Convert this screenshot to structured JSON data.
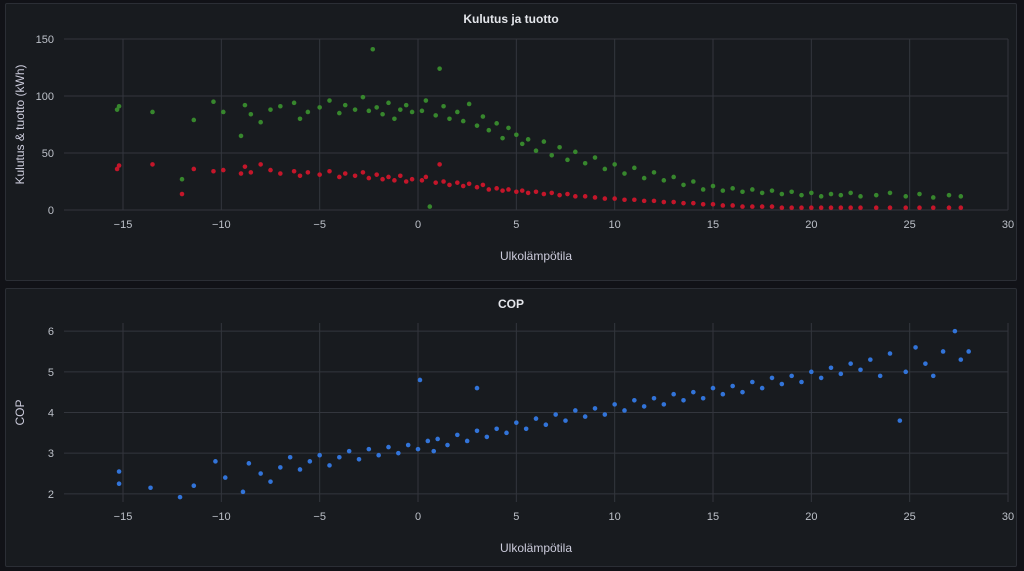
{
  "chart_data": [
    {
      "type": "scatter",
      "title": "Kulutus ja tuotto",
      "xlabel": "Ulkolämpötila",
      "ylabel": "Kulutus & tuotto (kWh)",
      "xlim": [
        -18,
        30
      ],
      "ylim": [
        0,
        150
      ],
      "xticks": [
        -15,
        -10,
        -5,
        0,
        5,
        10,
        15,
        20,
        25,
        30
      ],
      "yticks": [
        0,
        50,
        100,
        150
      ],
      "grid": true,
      "legend": "none",
      "series": [
        {
          "color": "#37872d",
          "points": [
            [
              -15.3,
              88
            ],
            [
              -15.2,
              91
            ],
            [
              -13.5,
              86
            ],
            [
              -12.0,
              27
            ],
            [
              -11.4,
              79
            ],
            [
              -10.4,
              95
            ],
            [
              -9.9,
              86
            ],
            [
              -9.0,
              65
            ],
            [
              -8.8,
              92
            ],
            [
              -8.5,
              84
            ],
            [
              -8.0,
              77
            ],
            [
              -7.5,
              88
            ],
            [
              -7.0,
              91
            ],
            [
              -6.3,
              94
            ],
            [
              -6.0,
              80
            ],
            [
              -5.6,
              86
            ],
            [
              -5.0,
              90
            ],
            [
              -4.5,
              96
            ],
            [
              -4.0,
              85
            ],
            [
              -3.7,
              92
            ],
            [
              -3.2,
              88
            ],
            [
              -2.8,
              99
            ],
            [
              -2.5,
              87
            ],
            [
              -2.3,
              141
            ],
            [
              -2.1,
              90
            ],
            [
              -1.8,
              84
            ],
            [
              -1.5,
              94
            ],
            [
              -1.2,
              80
            ],
            [
              -0.9,
              88
            ],
            [
              -0.6,
              92
            ],
            [
              -0.3,
              86
            ],
            [
              0.2,
              87
            ],
            [
              0.4,
              96
            ],
            [
              0.6,
              3
            ],
            [
              0.9,
              83
            ],
            [
              1.1,
              124
            ],
            [
              1.3,
              91
            ],
            [
              1.6,
              80
            ],
            [
              2.0,
              86
            ],
            [
              2.3,
              78
            ],
            [
              2.6,
              93
            ],
            [
              3.0,
              74
            ],
            [
              3.3,
              82
            ],
            [
              3.6,
              70
            ],
            [
              4.0,
              76
            ],
            [
              4.3,
              63
            ],
            [
              4.6,
              72
            ],
            [
              5.0,
              66
            ],
            [
              5.3,
              58
            ],
            [
              5.6,
              62
            ],
            [
              6.0,
              52
            ],
            [
              6.4,
              60
            ],
            [
              6.8,
              48
            ],
            [
              7.2,
              55
            ],
            [
              7.6,
              44
            ],
            [
              8.0,
              51
            ],
            [
              8.5,
              41
            ],
            [
              9.0,
              46
            ],
            [
              9.5,
              36
            ],
            [
              10.0,
              40
            ],
            [
              10.5,
              32
            ],
            [
              11.0,
              37
            ],
            [
              11.5,
              28
            ],
            [
              12.0,
              33
            ],
            [
              12.5,
              26
            ],
            [
              13.0,
              29
            ],
            [
              13.5,
              22
            ],
            [
              14.0,
              25
            ],
            [
              14.5,
              18
            ],
            [
              15.0,
              21
            ],
            [
              15.5,
              17
            ],
            [
              16.0,
              19
            ],
            [
              16.5,
              16
            ],
            [
              17.0,
              18
            ],
            [
              17.5,
              15
            ],
            [
              18.0,
              17
            ],
            [
              18.5,
              14
            ],
            [
              19.0,
              16
            ],
            [
              19.5,
              13
            ],
            [
              20.0,
              15
            ],
            [
              20.5,
              12
            ],
            [
              21.0,
              14
            ],
            [
              21.5,
              13
            ],
            [
              22.0,
              15
            ],
            [
              22.5,
              12
            ],
            [
              23.3,
              13
            ],
            [
              24.0,
              15
            ],
            [
              24.8,
              12
            ],
            [
              25.5,
              14
            ],
            [
              26.2,
              11
            ],
            [
              27.0,
              13
            ],
            [
              27.6,
              12
            ]
          ]
        },
        {
          "color": "#c4162a",
          "points": [
            [
              -15.3,
              36
            ],
            [
              -15.2,
              39
            ],
            [
              -13.5,
              40
            ],
            [
              -12.0,
              14
            ],
            [
              -11.4,
              36
            ],
            [
              -10.4,
              34
            ],
            [
              -9.9,
              35
            ],
            [
              -9.0,
              32
            ],
            [
              -8.8,
              38
            ],
            [
              -8.5,
              33
            ],
            [
              -8.0,
              40
            ],
            [
              -7.5,
              35
            ],
            [
              -7.0,
              32
            ],
            [
              -6.3,
              34
            ],
            [
              -6.0,
              30
            ],
            [
              -5.6,
              33
            ],
            [
              -5.0,
              31
            ],
            [
              -4.5,
              34
            ],
            [
              -4.0,
              29
            ],
            [
              -3.7,
              32
            ],
            [
              -3.2,
              30
            ],
            [
              -2.8,
              33
            ],
            [
              -2.5,
              28
            ],
            [
              -2.1,
              31
            ],
            [
              -1.8,
              27
            ],
            [
              -1.5,
              29
            ],
            [
              -1.2,
              26
            ],
            [
              -0.9,
              30
            ],
            [
              -0.6,
              25
            ],
            [
              -0.3,
              27
            ],
            [
              0.2,
              26
            ],
            [
              0.4,
              29
            ],
            [
              0.9,
              24
            ],
            [
              1.1,
              40
            ],
            [
              1.3,
              25
            ],
            [
              1.6,
              22
            ],
            [
              2.0,
              24
            ],
            [
              2.3,
              21
            ],
            [
              2.6,
              23
            ],
            [
              3.0,
              20
            ],
            [
              3.3,
              22
            ],
            [
              3.6,
              18
            ],
            [
              4.0,
              19
            ],
            [
              4.3,
              17
            ],
            [
              4.6,
              18
            ],
            [
              5.0,
              16
            ],
            [
              5.3,
              17
            ],
            [
              5.6,
              15
            ],
            [
              6.0,
              16
            ],
            [
              6.4,
              14
            ],
            [
              6.8,
              15
            ],
            [
              7.2,
              13
            ],
            [
              7.6,
              14
            ],
            [
              8.0,
              12
            ],
            [
              8.5,
              12
            ],
            [
              9.0,
              11
            ],
            [
              9.5,
              10
            ],
            [
              10.0,
              10
            ],
            [
              10.5,
              9
            ],
            [
              11.0,
              9
            ],
            [
              11.5,
              8
            ],
            [
              12.0,
              8
            ],
            [
              12.5,
              7
            ],
            [
              13.0,
              7
            ],
            [
              13.5,
              6
            ],
            [
              14.0,
              6
            ],
            [
              14.5,
              5
            ],
            [
              15.0,
              5
            ],
            [
              15.5,
              4
            ],
            [
              16.0,
              4
            ],
            [
              16.5,
              3
            ],
            [
              17.0,
              3
            ],
            [
              17.5,
              3
            ],
            [
              18.0,
              3
            ],
            [
              18.5,
              2
            ],
            [
              19.0,
              2
            ],
            [
              19.5,
              2
            ],
            [
              20.0,
              2
            ],
            [
              20.5,
              2
            ],
            [
              21.0,
              2
            ],
            [
              21.5,
              2
            ],
            [
              22.0,
              2
            ],
            [
              22.5,
              2
            ],
            [
              23.3,
              2
            ],
            [
              24.0,
              2
            ],
            [
              24.8,
              2
            ],
            [
              25.5,
              2
            ],
            [
              26.2,
              2
            ],
            [
              27.0,
              2
            ],
            [
              27.6,
              2
            ]
          ]
        }
      ]
    },
    {
      "type": "scatter",
      "title": "COP",
      "xlabel": "Ulkolämpötila",
      "ylabel": "COP",
      "xlim": [
        -18,
        30
      ],
      "ylim": [
        1.8,
        6.2
      ],
      "xticks": [
        -15,
        -10,
        -5,
        0,
        5,
        10,
        15,
        20,
        25,
        30
      ],
      "yticks": [
        2,
        3,
        4,
        5,
        6
      ],
      "grid": true,
      "legend": "none",
      "series": [
        {
          "color": "#3274d9",
          "points": [
            [
              -15.2,
              2.55
            ],
            [
              -15.2,
              2.25
            ],
            [
              -13.6,
              2.15
            ],
            [
              -12.1,
              1.92
            ],
            [
              -11.4,
              2.2
            ],
            [
              -10.3,
              2.8
            ],
            [
              -9.8,
              2.4
            ],
            [
              -8.9,
              2.05
            ],
            [
              -8.6,
              2.75
            ],
            [
              -8.0,
              2.5
            ],
            [
              -7.5,
              2.3
            ],
            [
              -7.0,
              2.65
            ],
            [
              -6.5,
              2.9
            ],
            [
              -6.0,
              2.6
            ],
            [
              -5.5,
              2.8
            ],
            [
              -5.0,
              2.95
            ],
            [
              -4.5,
              2.7
            ],
            [
              -4.0,
              2.9
            ],
            [
              -3.5,
              3.05
            ],
            [
              -3.0,
              2.85
            ],
            [
              -2.5,
              3.1
            ],
            [
              -2.0,
              2.95
            ],
            [
              -1.5,
              3.15
            ],
            [
              -1.0,
              3.0
            ],
            [
              -0.5,
              3.2
            ],
            [
              0.0,
              3.1
            ],
            [
              0.1,
              4.8
            ],
            [
              0.5,
              3.3
            ],
            [
              0.8,
              3.05
            ],
            [
              1.0,
              3.35
            ],
            [
              1.5,
              3.2
            ],
            [
              2.0,
              3.45
            ],
            [
              2.5,
              3.3
            ],
            [
              3.0,
              3.55
            ],
            [
              3.0,
              4.6
            ],
            [
              3.5,
              3.4
            ],
            [
              4.0,
              3.6
            ],
            [
              4.5,
              3.5
            ],
            [
              5.0,
              3.75
            ],
            [
              5.5,
              3.6
            ],
            [
              6.0,
              3.85
            ],
            [
              6.5,
              3.7
            ],
            [
              7.0,
              3.95
            ],
            [
              7.5,
              3.8
            ],
            [
              8.0,
              4.05
            ],
            [
              8.5,
              3.9
            ],
            [
              9.0,
              4.1
            ],
            [
              9.5,
              3.95
            ],
            [
              10.0,
              4.2
            ],
            [
              10.5,
              4.05
            ],
            [
              11.0,
              4.3
            ],
            [
              11.5,
              4.15
            ],
            [
              12.0,
              4.35
            ],
            [
              12.5,
              4.2
            ],
            [
              13.0,
              4.45
            ],
            [
              13.5,
              4.3
            ],
            [
              14.0,
              4.5
            ],
            [
              14.5,
              4.35
            ],
            [
              15.0,
              4.6
            ],
            [
              15.5,
              4.45
            ],
            [
              16.0,
              4.65
            ],
            [
              16.5,
              4.5
            ],
            [
              17.0,
              4.75
            ],
            [
              17.5,
              4.6
            ],
            [
              18.0,
              4.85
            ],
            [
              18.5,
              4.7
            ],
            [
              19.0,
              4.9
            ],
            [
              19.5,
              4.75
            ],
            [
              20.0,
              5.0
            ],
            [
              20.5,
              4.85
            ],
            [
              21.0,
              5.1
            ],
            [
              21.5,
              4.95
            ],
            [
              22.0,
              5.2
            ],
            [
              22.5,
              5.05
            ],
            [
              23.0,
              5.3
            ],
            [
              23.5,
              4.9
            ],
            [
              24.0,
              5.45
            ],
            [
              24.5,
              3.8
            ],
            [
              24.8,
              5.0
            ],
            [
              25.3,
              5.6
            ],
            [
              25.8,
              5.2
            ],
            [
              26.2,
              4.9
            ],
            [
              26.7,
              5.5
            ],
            [
              27.3,
              6.0
            ],
            [
              27.6,
              5.3
            ],
            [
              28.0,
              5.5
            ]
          ]
        }
      ]
    }
  ]
}
